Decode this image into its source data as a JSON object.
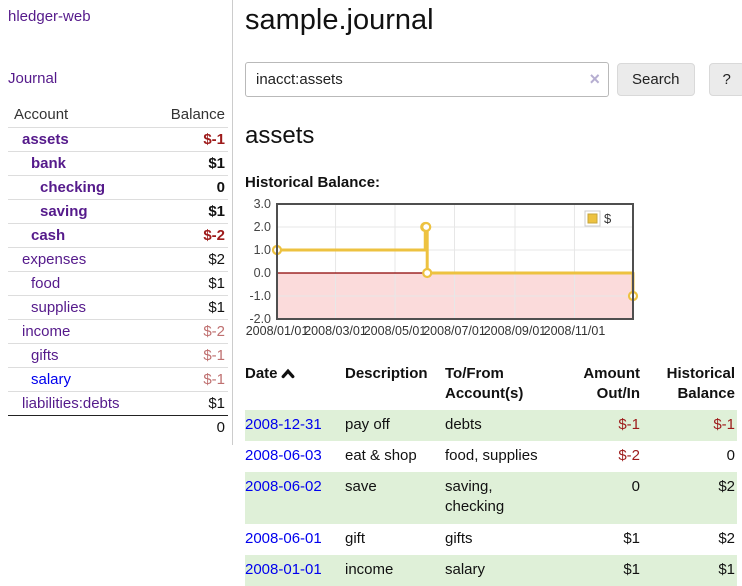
{
  "colors": {
    "accent_purple": "#551a8b",
    "link_blue": "#0000ee",
    "negative_strong": "#9d1a1a",
    "negative_soft": "#bf7070",
    "row_stripe_green": "#dff0d8",
    "series_gold": "#edc240",
    "negative_region_pink": "#fbdbdb",
    "zero_line_red": "#8b0000"
  },
  "sidebar": {
    "brand": "hledger-web",
    "journal_link": "Journal",
    "account_header": "Account",
    "balance_header": "Balance",
    "accounts": [
      {
        "name": "assets",
        "depth": 1,
        "bold": true,
        "balance": "$-1"
      },
      {
        "name": "bank",
        "depth": 2,
        "bold": true,
        "balance": "$1"
      },
      {
        "name": "checking",
        "depth": 3,
        "bold": true,
        "balance": "0"
      },
      {
        "name": "saving",
        "depth": 3,
        "bold": true,
        "balance": "$1"
      },
      {
        "name": "cash",
        "depth": 2,
        "bold": true,
        "balance": "$-2"
      },
      {
        "name": "expenses",
        "depth": 1,
        "bold": false,
        "balance": "$2"
      },
      {
        "name": "food",
        "depth": 2,
        "bold": false,
        "balance": "$1"
      },
      {
        "name": "supplies",
        "depth": 2,
        "bold": false,
        "balance": "$1"
      },
      {
        "name": "income",
        "depth": 1,
        "bold": false,
        "balance": "$-2"
      },
      {
        "name": "gifts",
        "depth": 2,
        "bold": false,
        "balance": "$-1"
      },
      {
        "name": "salary",
        "depth": 2,
        "bold": false,
        "balance": "$-1",
        "link_color": "#0000ee"
      },
      {
        "name": "liabilities:debts",
        "depth": 1,
        "bold": false,
        "balance": "$1"
      }
    ],
    "total": "0"
  },
  "header": {
    "title": "sample.journal"
  },
  "search": {
    "value": "inacct:assets",
    "placeholder": "",
    "clear_icon": "×",
    "button_label": "Search",
    "help_label": "?"
  },
  "account_page": {
    "title": "assets",
    "chart_label": "Historical Balance:"
  },
  "chart_data": {
    "type": "line",
    "step": true,
    "title": "Historical Balance",
    "xlim": [
      "2008-01-01",
      "2008-12-31"
    ],
    "ylim": [
      -2,
      3
    ],
    "y_ticks": [
      3.0,
      2.0,
      1.0,
      0.0,
      -1.0,
      -2.0
    ],
    "x_tick_labels": [
      "2008/01/01",
      "2008/03/01",
      "2008/05/01",
      "2008/07/01",
      "2008/09/01",
      "2008/11/01"
    ],
    "grid": true,
    "legend": {
      "label": "$",
      "position": "top-right"
    },
    "series": [
      {
        "name": "$",
        "color": "#edc240",
        "points": [
          {
            "date": "2008-01-01",
            "value": 1
          },
          {
            "date": "2008-06-01",
            "value": 2
          },
          {
            "date": "2008-06-02",
            "value": 2
          },
          {
            "date": "2008-06-03",
            "value": 0
          },
          {
            "date": "2008-12-31",
            "value": -1
          }
        ]
      }
    ]
  },
  "transactions": {
    "headers": {
      "date": "Date",
      "description": "Description",
      "accounts": "To/From Account(s)",
      "amount": "Amount Out/In",
      "balance": "Historical Balance"
    },
    "sort": {
      "column": "date",
      "direction": "ascending"
    },
    "rows": [
      {
        "date": "2008-12-31",
        "description": "pay off",
        "accounts": [
          "debts"
        ],
        "amount": "$-1",
        "balance": "$-1"
      },
      {
        "date": "2008-06-03",
        "description": "eat & shop",
        "accounts": [
          "food",
          "supplies"
        ],
        "amount": "$-2",
        "balance": "0"
      },
      {
        "date": "2008-06-02",
        "description": "save",
        "accounts": [
          "saving",
          "checking"
        ],
        "amount": "0",
        "balance": "$2"
      },
      {
        "date": "2008-06-01",
        "description": "gift",
        "accounts": [
          "gifts"
        ],
        "amount": "$1",
        "balance": "$2"
      },
      {
        "date": "2008-01-01",
        "description": "income",
        "accounts": [
          "salary"
        ],
        "amount": "$1",
        "balance": "$1"
      }
    ]
  }
}
